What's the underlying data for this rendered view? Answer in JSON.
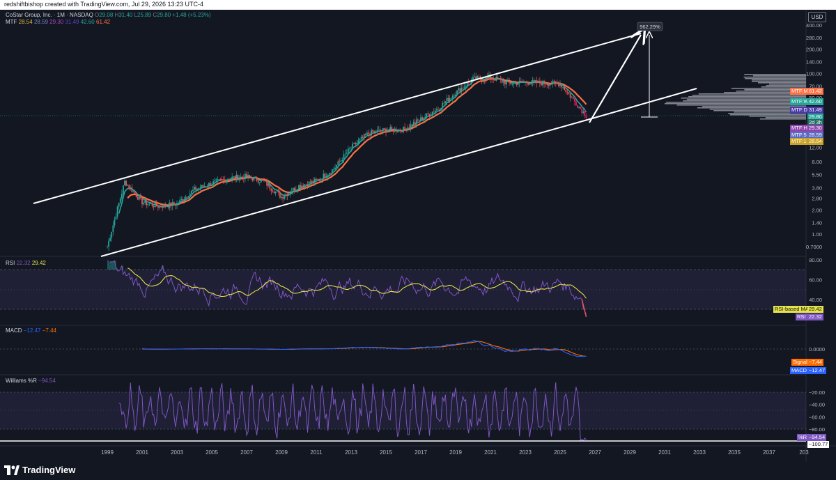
{
  "header": {
    "caption": "redshiftbishop created with TradingView.com, Jul 29, 2026 13:23 UTC-4"
  },
  "symbol": {
    "name": "CoStar Group, Inc. · 1M · NASDAQ",
    "ohlc": {
      "o_label": "O",
      "o": "29.08",
      "h_label": "H",
      "h": "31.40",
      "l_label": "L",
      "l": "25.89",
      "c_label": "C",
      "c": "29.80",
      "change": "+1.48 (+5.23%)"
    },
    "mtf_label": "MTF",
    "mtf_values": [
      "28.54",
      "28.59",
      "29.30",
      "31.49",
      "42.60",
      "61.42"
    ]
  },
  "currency": "USD",
  "colors": {
    "bg": "#131722",
    "up": "#26a69a",
    "down": "#ef5350",
    "rsi": "#7e57c2",
    "rsi_ma": "#e6e24a",
    "macd": "#2962ff",
    "signal": "#ff6d00",
    "wr": "#7e57c2"
  },
  "price_axis_labels": [
    "400.00",
    "280.00",
    "200.00",
    "140.00",
    "100.00",
    "70.00",
    "50.00",
    "35.00",
    "20.00",
    "12.00",
    "8.00",
    "5.50",
    "3.80",
    "2.80",
    "2.00",
    "1.40",
    "1.00",
    "0.7000"
  ],
  "mtf_tags": [
    {
      "label": "MTF:M",
      "value": "61.42",
      "color": "#ff7043"
    },
    {
      "label": "MTF:W",
      "value": "42.60",
      "color": "#26a69a"
    },
    {
      "label": "MTF:D",
      "value": "31.49",
      "color": "#4a3aa8"
    },
    {
      "label": "",
      "value": "29.80",
      "color": "#26a69a"
    },
    {
      "label": "",
      "value": "2d 3h",
      "color": "#1e6e64"
    },
    {
      "label": "MTF:H",
      "value": "29.30",
      "color": "#8e44ad"
    },
    {
      "label": "MTF:5",
      "value": "28.59",
      "color": "#5c6bc0"
    },
    {
      "label": "MTF:1",
      "value": "28.54",
      "color": "#c9a227"
    }
  ],
  "projection_label": "962.29%",
  "rsi": {
    "title": "RSI",
    "value": "22.32",
    "ma_value": "29.42",
    "axis_labels": [
      "80.00",
      "60.00",
      "40.00"
    ],
    "ma_tag_label": "RSI-based MA",
    "ma_tag_value": "29.42",
    "rsi_tag_label": "RSI",
    "rsi_tag_value": "22.32"
  },
  "macd": {
    "title": "MACD",
    "value": "−12.47",
    "signal_value": "−7.44",
    "axis_labels": [
      "0.0000"
    ],
    "signal_tag_label": "Signal",
    "signal_tag_value": "−7.44",
    "macd_tag_label": "MACD",
    "macd_tag_value": "−12.47"
  },
  "williams": {
    "title": "Williams %R",
    "value": "−94.54",
    "axis_labels": [
      "−20.00",
      "−40.00",
      "−60.00",
      "−80.00"
    ],
    "wr_tag_label": "%R",
    "wr_tag_value": "−94.54",
    "line_tag_value": "−100.77"
  },
  "time_axis_labels": [
    "1999",
    "2001",
    "2003",
    "2005",
    "2007",
    "2009",
    "2011",
    "2013",
    "2015",
    "2017",
    "2019",
    "2021",
    "2023",
    "2025",
    "2027",
    "2029",
    "2031",
    "2033",
    "2035",
    "2037",
    "203"
  ],
  "footer": {
    "brand": "TradingView"
  },
  "chart_data": {
    "type": "line",
    "title": "CoStar Group, Inc. · 1M · NASDAQ",
    "scale": "log",
    "ylim": [
      0.6,
      450
    ],
    "x": [
      1999,
      2000,
      2001,
      2002,
      2003,
      2004,
      2005,
      2006,
      2007,
      2008,
      2009,
      2010,
      2011,
      2012,
      2013,
      2014,
      2015,
      2016,
      2017,
      2018,
      2019,
      2020,
      2021,
      2022,
      2023,
      2024,
      2025,
      2026.5
    ],
    "series": [
      {
        "name": "Price",
        "values": [
          0.7,
          4.5,
          2.5,
          2.2,
          2.4,
          3.6,
          4.3,
          5.0,
          5.2,
          4.5,
          2.9,
          4.0,
          4.6,
          6.5,
          12,
          18,
          20,
          20,
          27,
          37,
          58,
          85,
          90,
          75,
          78,
          76,
          75,
          29.8
        ]
      }
    ],
    "channel_lines": [
      {
        "from": [
          "1998.3",
          2.48
        ],
        "to": [
          "2025.8",
          260
        ]
      },
      {
        "from": [
          "1998.9",
          0.63
        ],
        "to": [
          "2026.3",
          22.6
        ]
      },
      {
        "from": [
          "2026.0",
          23.7
        ],
        "to": [
          "2030.0",
          58
        ]
      }
    ],
    "projection": {
      "from": [
        "2025.8",
        23.7
      ],
      "to": [
        "2029.0",
        262
      ],
      "label": "962.29%"
    },
    "indicators": {
      "RSI": {
        "last": 22.32,
        "ma_last": 29.42,
        "levels": [
          70,
          50,
          30
        ]
      },
      "MACD": {
        "macd_last": -12.47,
        "signal_last": -7.44
      },
      "WilliamsR": {
        "last": -94.54,
        "line": -100.77,
        "levels": [
          -20,
          -80
        ]
      }
    }
  }
}
